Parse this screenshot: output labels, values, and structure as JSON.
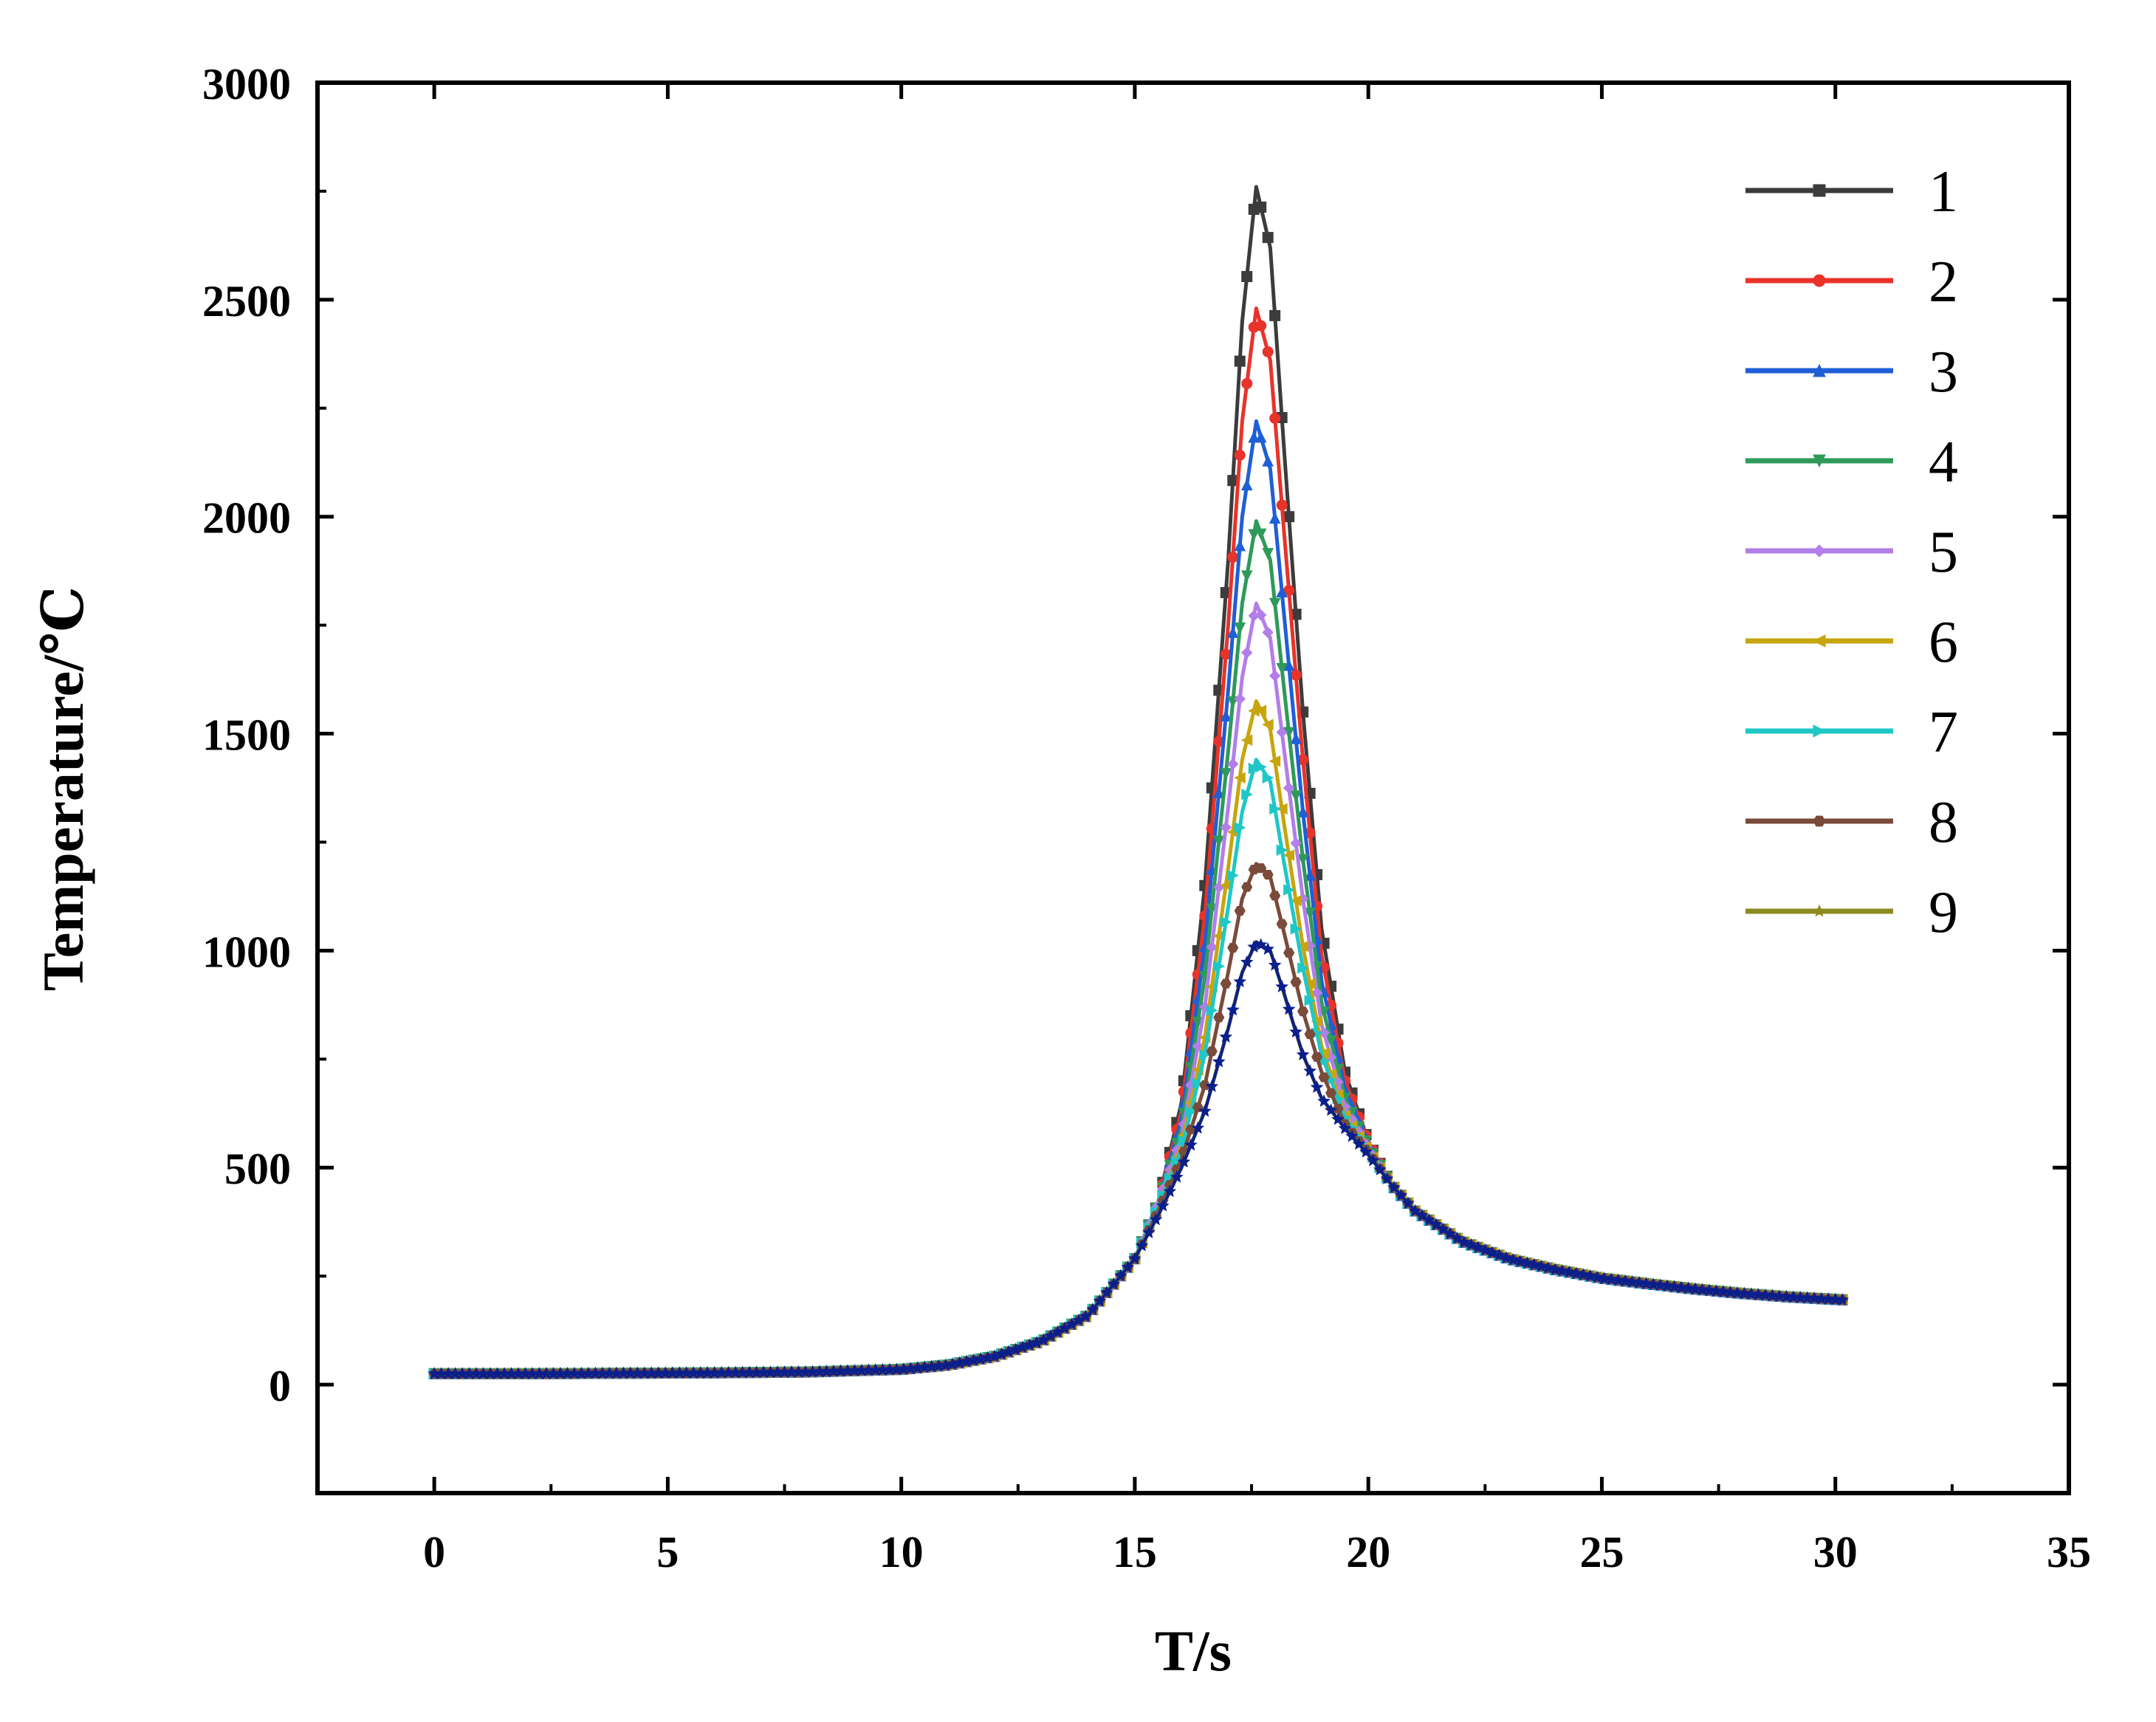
{
  "chart_data": {
    "type": "line",
    "title": "",
    "xlabel": "T/s",
    "ylabel": "Temperature/℃",
    "xlim": [
      -2.5,
      35
    ],
    "ylim": [
      -250,
      3000
    ],
    "xticks": [
      0,
      5,
      10,
      15,
      20,
      25,
      30,
      35
    ],
    "yticks": [
      0,
      500,
      1000,
      1500,
      2000,
      2500,
      3000
    ],
    "xtick_labels": [
      "0",
      "5",
      "10",
      "15",
      "20",
      "25",
      "30",
      "35"
    ],
    "ytick_labels": [
      "0",
      "500",
      "1000",
      "1500",
      "2000",
      "2500",
      "3000"
    ],
    "grid": false,
    "legend_position": "top-right",
    "x": [
      0,
      2,
      4,
      6,
      8,
      10,
      11,
      12,
      13,
      14,
      15,
      15.5,
      16,
      16.5,
      17,
      17.3,
      17.6,
      17.9,
      18.2,
      18.6,
      19,
      19.5,
      20,
      20.5,
      21,
      22,
      23,
      24,
      25,
      26,
      27,
      28,
      29,
      30.2
    ],
    "series": [
      {
        "name": "1",
        "color": "#3c3c3c",
        "marker": "square",
        "values": [
          25,
          25,
          26,
          27,
          29,
          35,
          45,
          65,
          100,
          160,
          290,
          420,
          650,
          1150,
          1900,
          2450,
          2760,
          2620,
          2150,
          1550,
          1050,
          720,
          560,
          460,
          400,
          330,
          290,
          265,
          245,
          232,
          220,
          210,
          202,
          195
        ]
      },
      {
        "name": "2",
        "color": "#e8332a",
        "marker": "circle",
        "values": [
          25,
          25,
          26,
          27,
          29,
          35,
          45,
          65,
          100,
          160,
          290,
          420,
          630,
          1080,
          1750,
          2220,
          2480,
          2360,
          1960,
          1440,
          990,
          700,
          560,
          460,
          400,
          330,
          290,
          265,
          245,
          232,
          220,
          210,
          202,
          195
        ]
      },
      {
        "name": "3",
        "color": "#1f5fd6",
        "marker": "triangle-up",
        "values": [
          25,
          25,
          26,
          27,
          29,
          35,
          45,
          65,
          100,
          160,
          290,
          420,
          610,
          1010,
          1600,
          2000,
          2220,
          2110,
          1770,
          1320,
          930,
          680,
          555,
          460,
          400,
          330,
          290,
          265,
          245,
          232,
          220,
          210,
          202,
          195
        ]
      },
      {
        "name": "4",
        "color": "#2e9a5a",
        "marker": "triangle-down",
        "values": [
          25,
          25,
          26,
          27,
          29,
          35,
          45,
          65,
          100,
          160,
          290,
          420,
          590,
          940,
          1460,
          1800,
          1990,
          1900,
          1600,
          1210,
          880,
          660,
          550,
          460,
          400,
          330,
          290,
          265,
          245,
          232,
          220,
          210,
          202,
          195
        ]
      },
      {
        "name": "5",
        "color": "#b27ee8",
        "marker": "diamond",
        "values": [
          25,
          25,
          26,
          27,
          29,
          35,
          45,
          65,
          100,
          160,
          290,
          420,
          570,
          870,
          1330,
          1630,
          1800,
          1720,
          1460,
          1120,
          830,
          640,
          545,
          460,
          400,
          330,
          290,
          265,
          245,
          232,
          220,
          210,
          202,
          195
        ]
      },
      {
        "name": "6",
        "color": "#c7a50e",
        "marker": "triangle-left",
        "values": [
          25,
          25,
          26,
          27,
          29,
          35,
          45,
          65,
          100,
          160,
          290,
          410,
          550,
          800,
          1190,
          1440,
          1575,
          1510,
          1290,
          1010,
          780,
          620,
          540,
          460,
          400,
          330,
          290,
          265,
          245,
          232,
          220,
          210,
          202,
          195
        ]
      },
      {
        "name": "7",
        "color": "#1fc7c7",
        "marker": "triangle-right",
        "values": [
          25,
          25,
          26,
          27,
          29,
          35,
          45,
          65,
          100,
          160,
          290,
          410,
          540,
          760,
          1100,
          1320,
          1440,
          1390,
          1200,
          960,
          760,
          615,
          540,
          460,
          400,
          330,
          290,
          265,
          245,
          232,
          220,
          210,
          202,
          195
        ]
      },
      {
        "name": "8",
        "color": "#7a4a3a",
        "marker": "hexagon",
        "values": [
          25,
          25,
          26,
          27,
          29,
          35,
          45,
          65,
          100,
          160,
          290,
          400,
          520,
          690,
          950,
          1120,
          1200,
          1170,
          1040,
          860,
          720,
          600,
          535,
          460,
          400,
          330,
          290,
          265,
          245,
          232,
          220,
          210,
          202,
          195
        ]
      },
      {
        "name": "9",
        "color": "#8c8a20",
        "marker": "star",
        "values": [
          25,
          25,
          26,
          27,
          29,
          35,
          45,
          65,
          100,
          160,
          290,
          390,
          500,
          630,
          820,
          950,
          1020,
          1000,
          900,
          760,
          660,
          590,
          530,
          460,
          400,
          330,
          290,
          265,
          245,
          232,
          220,
          210,
          202,
          195
        ]
      }
    ],
    "tail_series_color": "#0b1f8c"
  }
}
